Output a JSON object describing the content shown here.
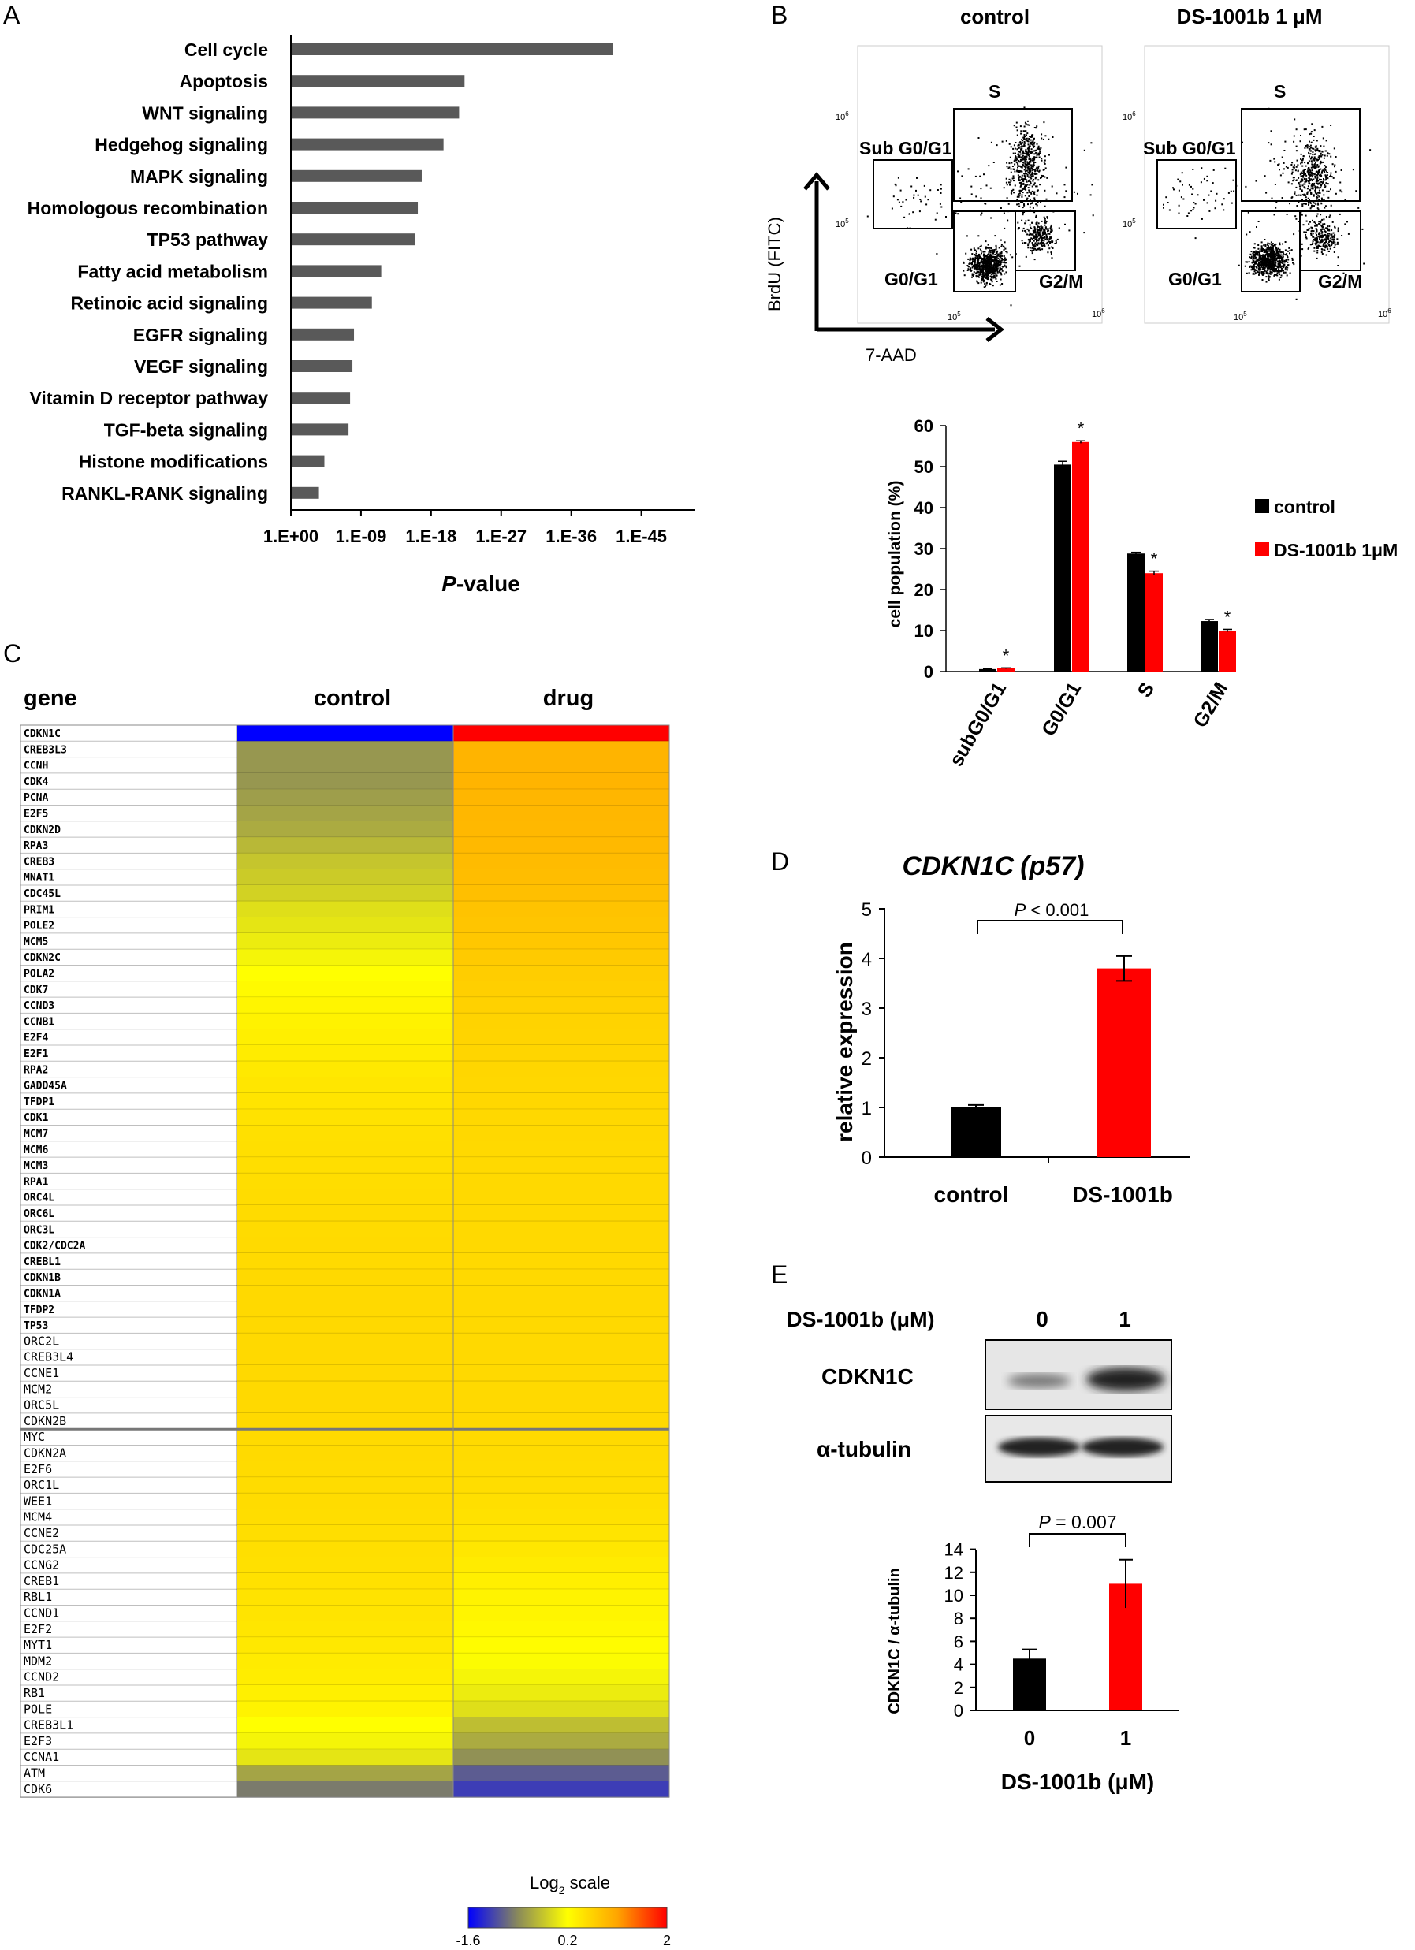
{
  "panel_labels": {
    "a": "A",
    "b": "B",
    "c": "C",
    "d": "D",
    "e": "E"
  },
  "chart_data": [
    {
      "panel": "A",
      "type": "bar",
      "orientation": "horizontal",
      "xlabel_italic": "P",
      "xlabel_rest": "-value",
      "x_scale": "-log10(P)",
      "x_ticks": [
        "1.E+00",
        "1.E-09",
        "1.E-18",
        "1.E-27",
        "1.E-36",
        "1.E-45"
      ],
      "x_tick_values": [
        0,
        9,
        18,
        27,
        36,
        45
      ],
      "categories": [
        "Cell cycle",
        "Apoptosis",
        "WNT signaling",
        "Hedgehog signaling",
        "MAPK signaling",
        "Homologous recombination",
        "TP53 pathway",
        "Fatty acid metabolism",
        "Retinoic acid signaling",
        "EGFR signaling",
        "VEGF signaling",
        "Vitamin D receptor pathway",
        "TGF-beta signaling",
        "Histone modifications",
        "RANKL-RANK signaling"
      ],
      "values": [
        41.3,
        22.3,
        21.6,
        19.6,
        16.8,
        16.3,
        15.9,
        11.6,
        10.4,
        8.1,
        7.9,
        7.6,
        7.4,
        4.3,
        3.6
      ],
      "bar_color": "#595959"
    },
    {
      "panel": "B-flow",
      "type": "scatter",
      "plots": [
        {
          "title": "control",
          "gates": [
            "Sub G0/G1",
            "S",
            "G0/G1",
            "G2/M"
          ]
        },
        {
          "title": "DS-1001b 1 μM",
          "gates": [
            "Sub G0/G1",
            "S",
            "G0/G1",
            "G2/M"
          ]
        }
      ],
      "xlabel": "7-AAD",
      "ylabel": "BrdU (FITC)",
      "x_ticks": [
        "10",
        "10"
      ],
      "x_tick_exp": [
        "5",
        "6"
      ],
      "y_ticks": [
        "10",
        "10"
      ],
      "y_tick_exp": [
        "5",
        "6"
      ]
    },
    {
      "panel": "B-bar",
      "type": "bar",
      "categories": [
        "subG0/G1",
        "G0/G1",
        "S",
        "G2/M"
      ],
      "series": [
        {
          "name": "control",
          "values": [
            0.6,
            50.5,
            28.8,
            12.3
          ],
          "errors": [
            0.1,
            0.8,
            0.3,
            0.4
          ],
          "color": "#000000"
        },
        {
          "name": "DS-1001b 1μM",
          "values": [
            0.8,
            56.0,
            24.0,
            10.0
          ],
          "errors": [
            0.1,
            0.3,
            0.5,
            0.3
          ],
          "color": "#ff0000"
        }
      ],
      "significance": [
        "*",
        "*",
        "*",
        "*"
      ],
      "ylabel": "cell population (%)",
      "ylim": [
        0,
        60
      ],
      "y_ticks": [
        "0",
        "10",
        "20",
        "30",
        "40",
        "50",
        "60"
      ],
      "legend_position": "right"
    },
    {
      "panel": "C",
      "type": "heatmap",
      "columns": [
        "control",
        "drug"
      ],
      "row_header": "gene",
      "scale_label_main": "Log",
      "scale_label_sub": "2",
      "scale_label_rest": " scale",
      "scale_ticks": [
        "-1.6",
        "0.2",
        "2"
      ],
      "scale_range": [
        -1.6,
        2
      ],
      "genes": [
        "CDKN1C",
        "CREB3L3",
        "CCNH",
        "CDK4",
        "PCNA",
        "E2F5",
        "CDKN2D",
        "RPA3",
        "CREB3",
        "MNAT1",
        "CDC45L",
        "PRIM1",
        "POLE2",
        "MCM5",
        "CDKN2C",
        "POLA2",
        "CDK7",
        "CCND3",
        "CCNB1",
        "E2F4",
        "E2F1",
        "RPA2",
        "GADD45A",
        "TFDP1",
        "CDK1",
        "MCM7",
        "MCM6",
        "MCM3",
        "RPA1",
        "ORC4L",
        "ORC6L",
        "ORC3L",
        "CDK2/CDC2A",
        "CREBL1",
        "CDKN1B",
        "CDKN1A",
        "TFDP2",
        "TP53",
        "ORC2L",
        "CREB3L4",
        "CCNE1",
        "MCM2",
        "ORC5L",
        "CDKN2B",
        "MYC",
        "CDKN2A",
        "E2F6",
        "ORC1L",
        "WEE1",
        "MCM4",
        "CCNE2",
        "CDC25A",
        "CCNG2",
        "CREB1",
        "RBL1",
        "CCND1",
        "E2F2",
        "MYT1",
        "MDM2",
        "CCND2",
        "RB1",
        "POLE",
        "CREB3L1",
        "E2F3",
        "CCNA1",
        "ATM",
        "CDK6"
      ],
      "control": [
        -1.6,
        -0.6,
        -0.6,
        -0.6,
        -0.55,
        -0.5,
        -0.45,
        -0.35,
        -0.25,
        -0.2,
        -0.15,
        -0.05,
        0.0,
        0.05,
        0.12,
        0.2,
        0.25,
        0.3,
        0.33,
        0.36,
        0.39,
        0.42,
        0.45,
        0.47,
        0.49,
        0.51,
        0.52,
        0.53,
        0.54,
        0.55,
        0.56,
        0.56,
        0.57,
        0.57,
        0.58,
        0.58,
        0.58,
        0.58,
        0.58,
        0.58,
        0.58,
        0.58,
        0.58,
        0.58,
        0.57,
        0.57,
        0.56,
        0.55,
        0.55,
        0.54,
        0.53,
        0.52,
        0.51,
        0.5,
        0.48,
        0.47,
        0.45,
        0.43,
        0.4,
        0.38,
        0.35,
        0.32,
        0.2,
        0.12,
        0.0,
        -0.5,
        -0.8
      ],
      "drug": [
        2.0,
        0.95,
        0.95,
        0.95,
        0.93,
        0.92,
        0.91,
        0.9,
        0.88,
        0.86,
        0.84,
        0.8,
        0.78,
        0.76,
        0.73,
        0.7,
        0.68,
        0.66,
        0.64,
        0.63,
        0.62,
        0.61,
        0.6,
        0.6,
        0.59,
        0.59,
        0.58,
        0.58,
        0.58,
        0.58,
        0.58,
        0.58,
        0.58,
        0.58,
        0.58,
        0.58,
        0.58,
        0.58,
        0.58,
        0.58,
        0.58,
        0.58,
        0.58,
        0.58,
        0.57,
        0.56,
        0.55,
        0.54,
        0.52,
        0.5,
        0.47,
        0.44,
        0.4,
        0.36,
        0.32,
        0.3,
        0.27,
        0.23,
        0.18,
        0.12,
        0.05,
        -0.05,
        -0.3,
        -0.45,
        -0.65,
        -1.0,
        -1.2
      ],
      "bold_rows_until": 38
    },
    {
      "panel": "D",
      "type": "bar",
      "title_gene": "CDKN1C",
      "title_protein": "(p57)",
      "categories": [
        "control",
        "DS-1001b"
      ],
      "values": [
        1.0,
        3.8
      ],
      "errors": [
        0.05,
        0.25
      ],
      "colors": [
        "#000000",
        "#ff0000"
      ],
      "ylabel": "relative expression",
      "ylim": [
        0,
        5
      ],
      "y_ticks": [
        "0",
        "1",
        "2",
        "3",
        "4",
        "5"
      ],
      "pvalue_italic": "P",
      "pvalue_rest": " < 0.001"
    },
    {
      "panel": "E-blot",
      "type": "table",
      "header_label": "DS-1001b (μM)",
      "lanes": [
        "0",
        "1"
      ],
      "rows": [
        "CDKN1C",
        "α-tubulin"
      ]
    },
    {
      "panel": "E-bar",
      "type": "bar",
      "categories": [
        "0",
        "1"
      ],
      "values": [
        4.5,
        11.0
      ],
      "errors": [
        0.8,
        2.1
      ],
      "colors": [
        "#000000",
        "#ff0000"
      ],
      "ylabel": "CDKN1C / α-tubulin",
      "xlabel": "DS-1001b (μM)",
      "ylim": [
        0,
        14
      ],
      "y_ticks": [
        "0",
        "2",
        "4",
        "6",
        "8",
        "10",
        "12",
        "14"
      ],
      "pvalue_italic": "P",
      "pvalue_rest": " = 0.007"
    }
  ]
}
